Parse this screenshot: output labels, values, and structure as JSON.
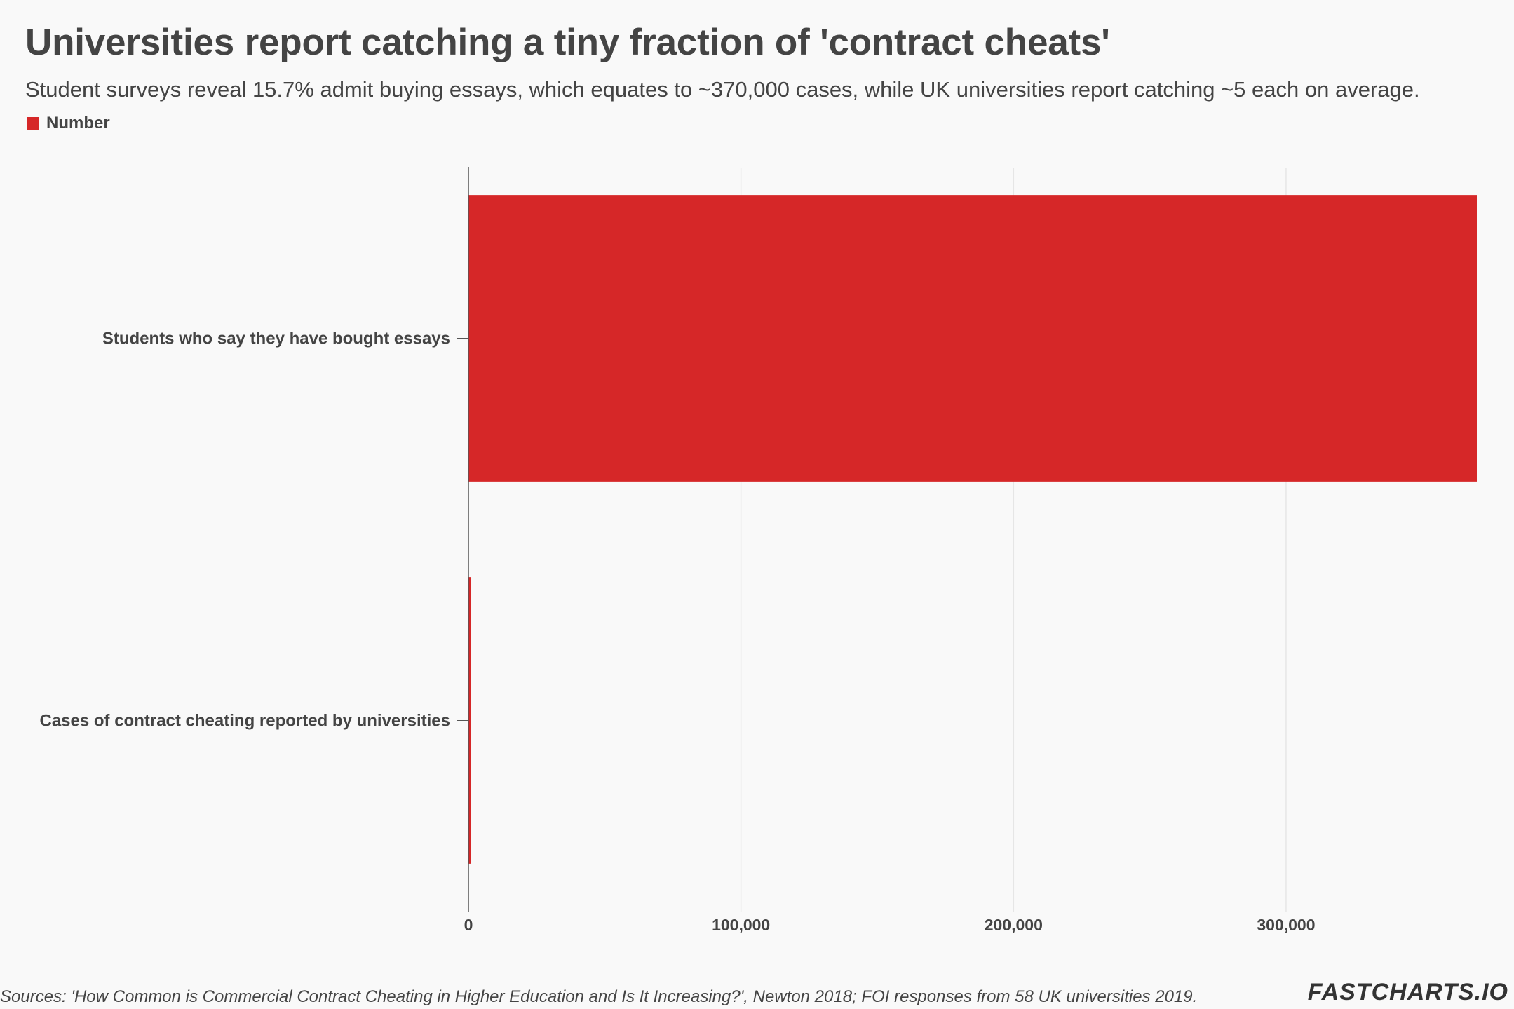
{
  "colors": {
    "bar": "#d62728",
    "grid": "#e6e6e6",
    "axis": "#555555",
    "text": "#444444"
  },
  "chart_data": {
    "type": "bar",
    "orientation": "horizontal",
    "title": "Universities report catching a tiny fraction of 'contract cheats'",
    "subtitle": "Student surveys reveal 15.7% admit buying essays, which equates to ~370,000 cases, while UK universities report catching ~5 each on average.",
    "legend": {
      "position": "top-left",
      "entries": [
        "Number"
      ]
    },
    "categories": [
      "Students who say they have bought essays",
      "Cases of contract cheating reported by universities"
    ],
    "series": [
      {
        "name": "Number",
        "values": [
          370000,
          290
        ]
      }
    ],
    "xlim": [
      0,
      370000
    ],
    "xticks": [
      0,
      100000,
      200000,
      300000
    ],
    "xtick_labels": [
      "0",
      "100,000",
      "200,000",
      "300,000"
    ],
    "grid": "vertical",
    "source": "Sources: 'How Common is Commercial Contract Cheating in Higher Education and Is It Increasing?', Newton 2018; FOI responses from 58 UK universities 2019.",
    "brand": "FASTCHARTS.IO"
  }
}
